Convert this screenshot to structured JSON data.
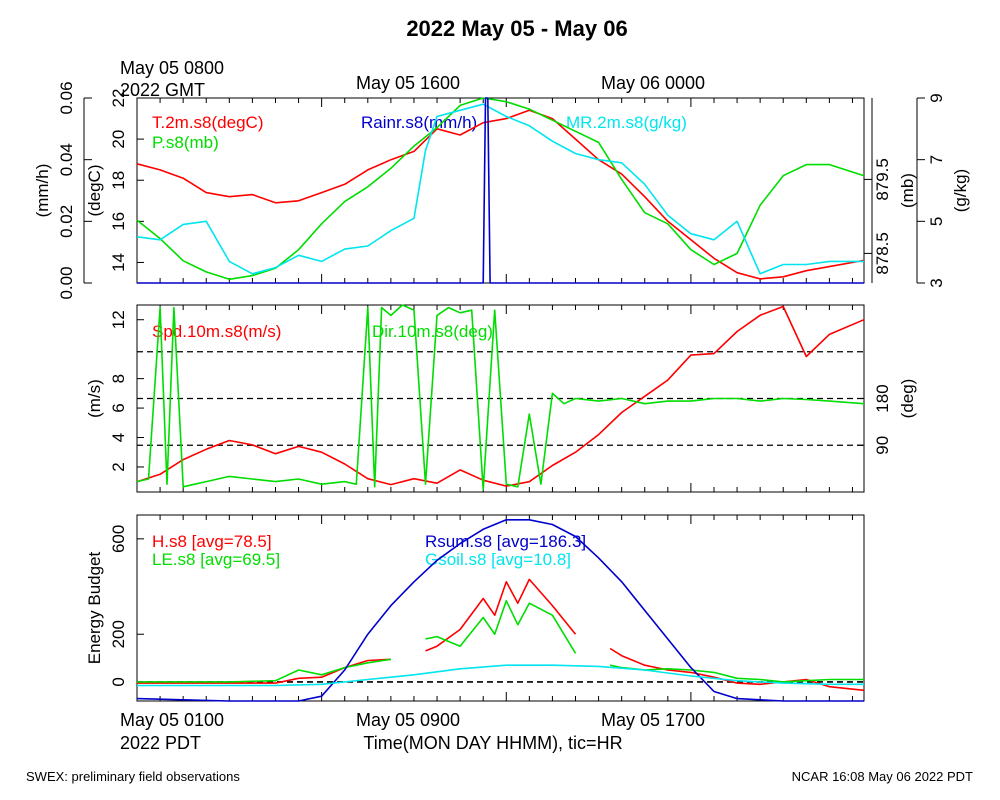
{
  "page": {
    "title": "2022 May 05 - May 06",
    "footer_left": "SWEX: preliminary field observations",
    "footer_right": "NCAR 16:08 May 06 2022 PDT"
  },
  "top_time_axis": {
    "first_label_line1": "May 05 0800",
    "first_label_line2": "2022 GMT",
    "label_2": "May 05 1600",
    "label_3": "May 06 0000"
  },
  "bottom_time_axis": {
    "first_label_line1": "May 05 0100",
    "first_label_line2": "2022 PDT",
    "label_2": "May 05 0900",
    "label_3": "May 05 1700",
    "title": "Time(MON DAY HHMM), tic=HR"
  },
  "colors": {
    "red": "#ff0000",
    "green": "#00dd00",
    "blue": "#0000cc",
    "cyan": "#00e5ee"
  },
  "chart_data": [
    {
      "type": "line",
      "panel": "thermo",
      "x_unit": "hours since May 05 0100 PDT",
      "xlim": [
        0,
        31.5
      ],
      "axes": [
        {
          "id": "rain",
          "side": "left-outer",
          "label": "(mm/h)",
          "lim": [
            0,
            0.06
          ],
          "ticks": [
            "0.00",
            "0.02",
            "0.04",
            "0.06"
          ],
          "tick_values": [
            0,
            0.02,
            0.04,
            0.06
          ]
        },
        {
          "id": "temp",
          "side": "left-inner",
          "label": "(degC)",
          "lim": [
            13,
            22
          ],
          "ticks": [
            "14",
            "16",
            "18",
            "20",
            "22"
          ],
          "tick_values": [
            14,
            16,
            18,
            20,
            22
          ]
        },
        {
          "id": "pres",
          "side": "right-inner",
          "label": "(mb)",
          "lim": [
            878.1,
            880.6
          ],
          "ticks": [
            "878.5",
            "879.5"
          ],
          "tick_values": [
            878.5,
            879.5
          ]
        },
        {
          "id": "mr",
          "side": "right-outer",
          "label": "(g/kg)",
          "lim": [
            3,
            9
          ],
          "ticks": [
            "3",
            "5",
            "7",
            "9"
          ],
          "tick_values": [
            3,
            5,
            7,
            9
          ]
        }
      ],
      "series": [
        {
          "name": "T.2m.s8(degC)",
          "color": "red",
          "axis": "temp",
          "x": [
            0,
            1,
            2,
            3,
            4,
            5,
            6,
            7,
            8,
            9,
            10,
            11,
            12,
            13,
            14,
            15,
            16,
            17,
            18,
            19,
            20,
            21,
            22,
            23,
            24,
            25,
            26,
            27,
            28,
            29,
            30,
            31.5
          ],
          "y": [
            18.8,
            18.5,
            18.1,
            17.4,
            17.2,
            17.3,
            16.9,
            17.0,
            17.4,
            17.8,
            18.5,
            19.0,
            19.4,
            20.5,
            20.2,
            20.8,
            21.0,
            21.4,
            21.0,
            20.0,
            19.0,
            18.3,
            17.2,
            16.0,
            15.1,
            14.2,
            13.5,
            13.2,
            13.3,
            13.6,
            13.8,
            14.1
          ]
        },
        {
          "name": "P.s8(mb)",
          "color": "green",
          "axis": "pres",
          "x": [
            0,
            1,
            2,
            3,
            4,
            5,
            6,
            7,
            8,
            9,
            10,
            11,
            12,
            13,
            14,
            15,
            16,
            17,
            18,
            19,
            20,
            21,
            22,
            23,
            24,
            25,
            26,
            27,
            28,
            29,
            30,
            31.5
          ],
          "y": [
            878.95,
            878.7,
            878.4,
            878.25,
            878.15,
            878.2,
            878.3,
            878.55,
            878.9,
            879.2,
            879.4,
            879.65,
            879.95,
            880.2,
            880.5,
            880.6,
            880.55,
            880.45,
            880.3,
            880.15,
            880.0,
            879.5,
            879.05,
            878.9,
            878.55,
            878.35,
            878.5,
            879.15,
            879.55,
            879.7,
            879.7,
            879.55
          ]
        },
        {
          "name": "MR.2m.s8(g/kg)",
          "color": "cyan",
          "axis": "mr",
          "x": [
            0,
            1,
            2,
            3,
            4,
            5,
            6,
            7,
            8,
            9,
            10,
            11,
            12,
            12.5,
            13,
            14,
            15,
            16,
            17,
            18,
            19,
            20,
            21,
            22,
            23,
            24,
            25,
            26,
            27,
            28,
            29,
            30,
            31.5
          ],
          "y": [
            4.5,
            4.4,
            4.9,
            5.0,
            3.7,
            3.3,
            3.5,
            3.9,
            3.7,
            4.1,
            4.2,
            4.7,
            5.1,
            7.3,
            8.4,
            8.6,
            8.8,
            8.4,
            8.1,
            7.6,
            7.2,
            7.0,
            6.9,
            6.2,
            5.2,
            4.6,
            4.4,
            5.0,
            3.3,
            3.6,
            3.6,
            3.7,
            3.7
          ]
        },
        {
          "name": "Rainr.s8(mm/h)",
          "color": "blue",
          "axis": "rain",
          "x": [
            0,
            15.0,
            15.1,
            15.2,
            15.3,
            31.5
          ],
          "y": [
            0,
            0,
            0.06,
            0.06,
            0,
            0
          ]
        }
      ]
    },
    {
      "type": "line",
      "panel": "wind",
      "x_unit": "hours since May 05 0100 PDT",
      "xlim": [
        0,
        31.5
      ],
      "axes": [
        {
          "id": "spd",
          "side": "left",
          "label": "(m/s)",
          "lim": [
            0.3,
            13
          ],
          "ticks": [
            "2",
            "4",
            "6",
            "8",
            "12"
          ],
          "tick_values": [
            2,
            4,
            6,
            8,
            12
          ]
        },
        {
          "id": "dir",
          "side": "right",
          "label": "(deg)",
          "lim": [
            0,
            360
          ],
          "ticks": [
            "90",
            "180"
          ],
          "tick_values": [
            90,
            180
          ]
        }
      ],
      "reference_lines_deg": [
        90,
        180,
        270
      ],
      "series": [
        {
          "name": "Spd.10m.s8(m/s)",
          "color": "red",
          "axis": "spd",
          "x": [
            0,
            1,
            2,
            3,
            4,
            5,
            6,
            7,
            8,
            9,
            10,
            11,
            12,
            13,
            14,
            15,
            16,
            17,
            18,
            19,
            20,
            21,
            22,
            23,
            24,
            25,
            26,
            27,
            28,
            29,
            30,
            31.5
          ],
          "y": [
            1.0,
            1.5,
            2.5,
            3.2,
            3.8,
            3.5,
            2.9,
            3.4,
            3.0,
            2.2,
            1.2,
            0.8,
            1.2,
            0.9,
            1.8,
            1.1,
            0.7,
            1.0,
            2.1,
            3.0,
            4.2,
            5.7,
            6.8,
            7.9,
            9.6,
            9.7,
            11.2,
            12.3,
            12.9,
            9.5,
            11.0,
            12.0
          ]
        },
        {
          "name": "Dir.10m.s8(deg)",
          "color": "green",
          "axis": "dir",
          "x": [
            0,
            0.5,
            1,
            1.3,
            1.6,
            2,
            2.5,
            3,
            4,
            5,
            6,
            7,
            8,
            9,
            9.5,
            10,
            10.3,
            10.6,
            11,
            11.5,
            12,
            12.5,
            13,
            13.5,
            14,
            14.5,
            15,
            15.5,
            16,
            16.5,
            17,
            17.5,
            18,
            18.5,
            19,
            20,
            21,
            22,
            23,
            24,
            25,
            26,
            27,
            28,
            29,
            30,
            31.5
          ],
          "y": [
            20,
            25,
            355,
            15,
            355,
            10,
            15,
            20,
            30,
            25,
            20,
            25,
            15,
            20,
            15,
            355,
            10,
            355,
            340,
            360,
            350,
            15,
            340,
            355,
            345,
            350,
            5,
            350,
            15,
            10,
            150,
            15,
            190,
            170,
            180,
            175,
            180,
            170,
            175,
            175,
            180,
            180,
            175,
            180,
            178,
            175,
            170
          ]
        }
      ]
    },
    {
      "type": "line",
      "panel": "energy",
      "x_unit": "hours since May 05 0100 PDT",
      "xlim": [
        0,
        31.5
      ],
      "axes": [
        {
          "id": "flux",
          "side": "left",
          "label": "Energy Budget",
          "lim": [
            -80,
            700
          ],
          "ticks": [
            "0",
            "200",
            "600"
          ],
          "tick_values": [
            0,
            200,
            600
          ]
        }
      ],
      "reference_lines": [
        0
      ],
      "series": [
        {
          "name": "H.s8 [avg=78.5]",
          "color": "red",
          "axis": "flux",
          "x": [
            0,
            2,
            4,
            6,
            7,
            8,
            9,
            10,
            11,
            12,
            12.5,
            13,
            14,
            15,
            15.5,
            16,
            16.5,
            17,
            18,
            19,
            20,
            20.5,
            21,
            22,
            23,
            24,
            25,
            26,
            27,
            28,
            29,
            30,
            31.5
          ],
          "y": [
            -5,
            -5,
            -5,
            -5,
            15,
            20,
            60,
            90,
            95,
            null,
            130,
            150,
            220,
            350,
            280,
            420,
            330,
            430,
            320,
            200,
            null,
            140,
            110,
            70,
            50,
            40,
            20,
            -5,
            -10,
            0,
            10,
            -20,
            -35
          ]
        },
        {
          "name": "LE.s8 [avg=69.5]",
          "color": "green",
          "axis": "flux",
          "x": [
            0,
            2,
            4,
            6,
            7,
            8,
            9,
            10,
            11,
            12,
            12.5,
            13,
            14,
            15,
            15.5,
            16,
            16.5,
            17,
            18,
            19,
            20,
            20.5,
            21,
            22,
            23,
            24,
            25,
            26,
            27,
            28,
            29,
            30,
            31.5
          ],
          "y": [
            0,
            0,
            0,
            5,
            50,
            30,
            60,
            80,
            95,
            null,
            180,
            190,
            150,
            270,
            200,
            340,
            240,
            330,
            280,
            120,
            null,
            70,
            60,
            50,
            55,
            50,
            40,
            15,
            10,
            0,
            5,
            10,
            10
          ]
        },
        {
          "name": "Rsum.s8 [avg=186.3]",
          "color": "blue",
          "axis": "flux",
          "x": [
            0,
            2,
            4,
            6,
            7,
            8,
            9,
            10,
            11,
            12,
            13,
            14,
            15,
            16,
            17,
            18,
            19,
            20,
            21,
            22,
            23,
            24,
            25,
            26,
            27,
            28,
            29,
            30,
            31.5
          ],
          "y": [
            -70,
            -75,
            -80,
            -80,
            -80,
            -60,
            50,
            200,
            320,
            420,
            510,
            580,
            640,
            680,
            680,
            660,
            610,
            520,
            420,
            300,
            180,
            60,
            -40,
            -70,
            -75,
            -80,
            -80,
            -80,
            -80
          ]
        },
        {
          "name": "Gsoil.s8 [avg=10.8]",
          "color": "cyan",
          "axis": "flux",
          "x": [
            0,
            2,
            4,
            6,
            8,
            10,
            12,
            14,
            16,
            18,
            20,
            22,
            24,
            26,
            28,
            30,
            31.5
          ],
          "y": [
            -15,
            -15,
            -15,
            -15,
            -10,
            10,
            30,
            55,
            70,
            70,
            65,
            50,
            25,
            5,
            -5,
            -10,
            -10
          ]
        }
      ]
    }
  ]
}
